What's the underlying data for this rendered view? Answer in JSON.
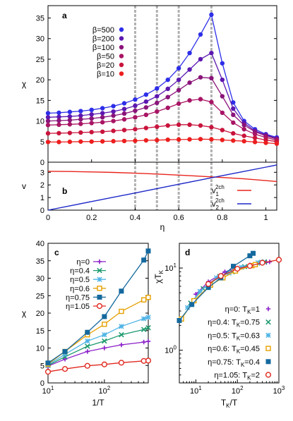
{
  "chart_data": [
    {
      "panel": "a",
      "type": "line",
      "tag": "a",
      "xlabel": "η",
      "ylabel": "χ",
      "xlim": [
        0,
        1.05
      ],
      "ylim": [
        0,
        38
      ],
      "xticks": [],
      "yticks": [
        0,
        5,
        10,
        15,
        20,
        25,
        30,
        35
      ],
      "ytick_labels": [
        "0",
        "5",
        "10",
        "15",
        "20",
        "25",
        "30",
        "35"
      ],
      "vlines": [
        0.4,
        0.5,
        0.6,
        0.75
      ],
      "legend_position": "top-left",
      "x": [
        0,
        0.05,
        0.1,
        0.15,
        0.2,
        0.25,
        0.3,
        0.35,
        0.4,
        0.45,
        0.5,
        0.55,
        0.6,
        0.65,
        0.7,
        0.75,
        0.8,
        0.85,
        0.9,
        0.95,
        1.0,
        1.05
      ],
      "series": [
        {
          "name": "β=500",
          "color": "#2d2ee8",
          "values": [
            11.9,
            12.0,
            12.2,
            12.4,
            12.7,
            13.1,
            13.6,
            14.3,
            15.2,
            16.4,
            17.9,
            20.0,
            22.8,
            26.5,
            31.0,
            35.8,
            24.0,
            14.5,
            10.0,
            8.0,
            6.8,
            6.0
          ]
        },
        {
          "name": "β=200",
          "color": "#5c17b0",
          "values": [
            10.9,
            11.0,
            11.1,
            11.3,
            11.6,
            11.9,
            12.3,
            12.9,
            13.7,
            14.7,
            16.0,
            17.8,
            20.0,
            22.5,
            25.0,
            26.5,
            20.0,
            13.0,
            9.5,
            7.6,
            6.6,
            5.8
          ]
        },
        {
          "name": "β=100",
          "color": "#8a147a",
          "values": [
            10.0,
            10.1,
            10.2,
            10.4,
            10.6,
            10.9,
            11.3,
            11.8,
            12.5,
            13.3,
            14.4,
            15.8,
            17.5,
            19.3,
            20.6,
            20.4,
            16.0,
            11.5,
            9.0,
            7.4,
            6.4,
            5.6
          ]
        },
        {
          "name": "β=50",
          "color": "#a81464",
          "values": [
            9.0,
            9.1,
            9.2,
            9.3,
            9.5,
            9.7,
            10.0,
            10.4,
            10.9,
            11.5,
            12.3,
            13.2,
            14.2,
            15.0,
            15.3,
            14.6,
            12.0,
            9.6,
            8.0,
            6.8,
            6.0,
            5.3
          ]
        },
        {
          "name": "β=20",
          "color": "#c8143c",
          "values": [
            7.0,
            7.05,
            7.1,
            7.2,
            7.3,
            7.4,
            7.6,
            7.8,
            8.0,
            8.3,
            8.6,
            8.9,
            9.1,
            9.1,
            8.9,
            8.5,
            7.8,
            7.0,
            6.4,
            5.9,
            5.4,
            5.0
          ]
        },
        {
          "name": "β=10",
          "color": "#ec1e1e",
          "values": [
            4.9,
            4.9,
            4.95,
            5.0,
            5.0,
            5.05,
            5.1,
            5.15,
            5.2,
            5.3,
            5.35,
            5.45,
            5.5,
            5.55,
            5.6,
            5.55,
            5.4,
            5.25,
            5.1,
            4.9,
            4.7,
            4.5
          ]
        }
      ]
    },
    {
      "panel": "b",
      "type": "line",
      "tag": "b",
      "xlabel": "η",
      "ylabel": "v",
      "xlim": [
        0,
        1.05
      ],
      "ylim": [
        0,
        3.8
      ],
      "xticks": [
        0,
        0.2,
        0.4,
        0.6,
        0.8,
        1
      ],
      "xtick_labels": [
        "0",
        "0.2",
        "0.4",
        "0.6",
        "0.8",
        "1"
      ],
      "yticks": [
        0,
        1,
        2,
        3
      ],
      "ytick_labels": [
        "0",
        "1",
        "2",
        "3"
      ],
      "vlines": [
        0.4,
        0.5,
        0.6,
        0.75
      ],
      "legend_position": "bottom-right",
      "x": [
        0,
        0.1,
        0.2,
        0.3,
        0.4,
        0.5,
        0.6,
        0.7,
        0.8,
        0.9,
        1.0,
        1.05
      ],
      "series": [
        {
          "name": "v₁²ᶜʰ",
          "name_base": "v",
          "name_sub": "1",
          "name_sup": "2ch",
          "color": "#e8241c",
          "values": [
            3.08,
            3.06,
            3.03,
            2.99,
            2.93,
            2.86,
            2.78,
            2.69,
            2.59,
            2.48,
            2.34,
            2.27
          ]
        },
        {
          "name": "v₂²ᶜʰ",
          "name_base": "v",
          "name_sub": "2",
          "name_sup": "2ch",
          "color": "#1e28c8",
          "values": [
            0,
            0.34,
            0.68,
            1.02,
            1.36,
            1.71,
            2.05,
            2.39,
            2.73,
            3.07,
            3.41,
            3.58
          ]
        }
      ]
    },
    {
      "panel": "c",
      "type": "line",
      "tag": "c",
      "xlabel": "1/T",
      "ylabel": "χ",
      "xscale": "log",
      "xlim": [
        10,
        600
      ],
      "ylim": [
        0,
        40
      ],
      "xticks": [
        10,
        100
      ],
      "xtick_labels": [
        "10¹",
        "10²"
      ],
      "yticks": [
        0,
        5,
        10,
        15,
        20,
        25,
        30,
        35,
        40
      ],
      "ytick_labels": [
        "0",
        "5",
        "10",
        "15",
        "20",
        "25",
        "30",
        "35",
        "40"
      ],
      "legend_position": "top-left",
      "x": [
        10,
        20,
        50,
        100,
        200,
        500,
        600
      ],
      "series": [
        {
          "name": "η=0",
          "color": "#8a1ec8",
          "marker": "plus",
          "values": [
            4.8,
            6.8,
            9.0,
            10.0,
            10.9,
            11.7,
            11.9
          ]
        },
        {
          "name": "η=0.4",
          "color": "#1e9a6e",
          "marker": "cross",
          "values": [
            5.0,
            7.5,
            10.5,
            12.0,
            13.8,
            15.3,
            15.8
          ]
        },
        {
          "name": "η=0.5",
          "color": "#50b4e6",
          "marker": "star",
          "values": [
            5.2,
            8.2,
            12.0,
            13.8,
            16.2,
            18.4,
            18.8
          ]
        },
        {
          "name": "η=0.6",
          "color": "#e6a000",
          "marker": "open-square",
          "values": [
            5.4,
            9.0,
            13.8,
            16.8,
            20.5,
            23.8,
            24.5
          ]
        },
        {
          "name": "η=0.75",
          "color": "#14699e",
          "marker": "filled-square",
          "values": [
            5.7,
            9.0,
            14.5,
            19.0,
            26.3,
            35.2,
            37.8
          ]
        },
        {
          "name": "η=1.05",
          "color": "#e0281e",
          "marker": "open-circle",
          "values": [
            3.2,
            4.0,
            4.9,
            5.3,
            5.8,
            6.3,
            6.4
          ]
        }
      ]
    },
    {
      "panel": "d",
      "type": "scatter",
      "tag": "d",
      "xlabel": "T_K/T",
      "ylabel": "χT_K",
      "xscale": "log",
      "yscale": "log",
      "xlim": [
        4,
        1000
      ],
      "ylim": [
        0.4,
        20
      ],
      "xticks": [
        10,
        100,
        1000
      ],
      "xtick_labels": [
        "10¹",
        "10²",
        "10³"
      ],
      "yticks": [
        1,
        10
      ],
      "ytick_labels": [
        "10⁰",
        "10¹"
      ],
      "legend_position": "bottom-right",
      "series": [
        {
          "name": "η=0: T_K=1",
          "label": "η=0: T",
          "label_sub": "K",
          "label_tail": "=1",
          "color": "#8a1ec8",
          "marker": "plus",
          "x": [
            10,
            20,
            50,
            100,
            200,
            500,
            600
          ],
          "y": [
            4.8,
            6.8,
            9.0,
            10.0,
            10.9,
            11.7,
            11.9
          ]
        },
        {
          "name": "η=0.4: T_K=0.75",
          "label": "η=0.4: T",
          "label_sub": "K",
          "label_tail": "=0.75",
          "color": "#1e9a6e",
          "marker": "cross",
          "x": [
            7.5,
            15,
            37.5,
            75,
            150,
            375,
            450
          ],
          "y": [
            3.75,
            5.6,
            7.9,
            9.0,
            10.4,
            11.5,
            11.9
          ]
        },
        {
          "name": "η=0.5: T_K=0.63",
          "label": "η=0.5: T",
          "label_sub": "K",
          "label_tail": "=0.63",
          "color": "#50b4e6",
          "marker": "star",
          "x": [
            6.3,
            12.6,
            31.5,
            63,
            126,
            315,
            378
          ],
          "y": [
            3.3,
            5.2,
            7.6,
            8.7,
            10.2,
            11.6,
            11.8
          ]
        },
        {
          "name": "η=0.6: T_K=0.45",
          "label": "η=0.6: T",
          "label_sub": "K",
          "label_tail": "=0.45",
          "color": "#e6a000",
          "marker": "open-square",
          "x": [
            4.5,
            9,
            22.5,
            45,
            90,
            225,
            270
          ],
          "y": [
            2.4,
            4.0,
            6.2,
            7.6,
            9.2,
            10.7,
            11.0
          ]
        },
        {
          "name": "η=0.75: T_K=0.4",
          "label": "η=0.75: T",
          "label_sub": "K",
          "label_tail": "=0.4",
          "color": "#14699e",
          "marker": "filled-square",
          "x": [
            4,
            8,
            20,
            40,
            80,
            200,
            240
          ],
          "y": [
            2.3,
            3.6,
            5.8,
            7.6,
            10.5,
            14.1,
            15.1
          ]
        },
        {
          "name": "η=1.05: T_K=2",
          "label": "η=1.05: T",
          "label_sub": "K",
          "label_tail": "=2",
          "color": "#e0281e",
          "marker": "open-circle",
          "x": [
            20,
            40,
            100,
            200,
            400,
            1000
          ],
          "y": [
            6.4,
            8.0,
            9.8,
            10.6,
            11.6,
            12.6
          ]
        }
      ]
    }
  ]
}
